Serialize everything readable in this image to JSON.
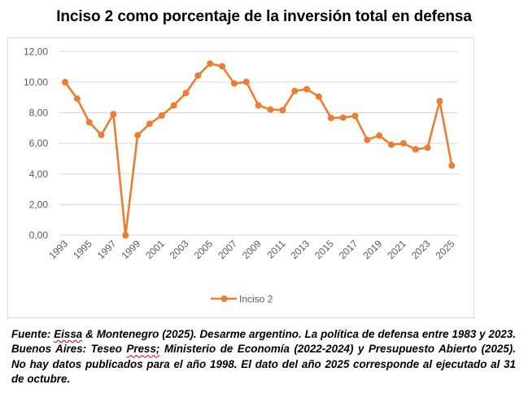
{
  "chart_data": {
    "type": "line",
    "title": "Inciso 2 como porcentaje de la inversión total en defensa",
    "xlabel": "",
    "ylabel": "",
    "ylim": [
      0,
      12
    ],
    "yticks": [
      "0,00",
      "2,00",
      "4,00",
      "6,00",
      "8,00",
      "10,00",
      "12,00"
    ],
    "ytick_values": [
      0,
      2,
      4,
      6,
      8,
      10,
      12
    ],
    "grid": true,
    "legend_position": "bottom",
    "x": [
      1993,
      1994,
      1995,
      1996,
      1997,
      1998,
      1999,
      2000,
      2001,
      2002,
      2003,
      2004,
      2005,
      2006,
      2007,
      2008,
      2009,
      2010,
      2011,
      2012,
      2013,
      2014,
      2015,
      2016,
      2017,
      2018,
      2019,
      2020,
      2021,
      2022,
      2023,
      2024,
      2025
    ],
    "xtick_labels": [
      "1993",
      "1995",
      "1997",
      "1999",
      "2001",
      "2003",
      "2005",
      "2007",
      "2009",
      "2011",
      "2013",
      "2015",
      "2017",
      "2019",
      "2021",
      "2023",
      "2025"
    ],
    "series": [
      {
        "name": "Inciso 2",
        "color": "#ED7D31",
        "values": [
          10.0,
          8.92,
          7.38,
          6.55,
          7.91,
          0.0,
          6.53,
          7.28,
          7.82,
          8.48,
          9.29,
          10.43,
          11.21,
          11.03,
          9.91,
          10.02,
          8.48,
          8.21,
          8.17,
          9.42,
          9.54,
          9.05,
          7.66,
          7.68,
          7.79,
          6.23,
          6.51,
          5.91,
          6.0,
          5.61,
          5.72,
          8.76,
          4.55
        ]
      }
    ]
  },
  "caption": {
    "parts": [
      {
        "text": "Fuente: ",
        "squiggle": false
      },
      {
        "text": "Eissa",
        "squiggle": true
      },
      {
        "text": " & Montenegro (2025). Desarme argentino. La política de defensa entre 1983 y 2023. Buenos Aires: Teseo ",
        "squiggle": false
      },
      {
        "text": "Press;",
        "squiggle": true
      },
      {
        "text": " Ministerio de Economía (2022-2024) y Presupuesto Abierto (2025). No hay datos publicados para el año 1998. El dato del año 2025 corresponde al ejecutado al 31 de octubre.",
        "squiggle": false
      }
    ]
  }
}
